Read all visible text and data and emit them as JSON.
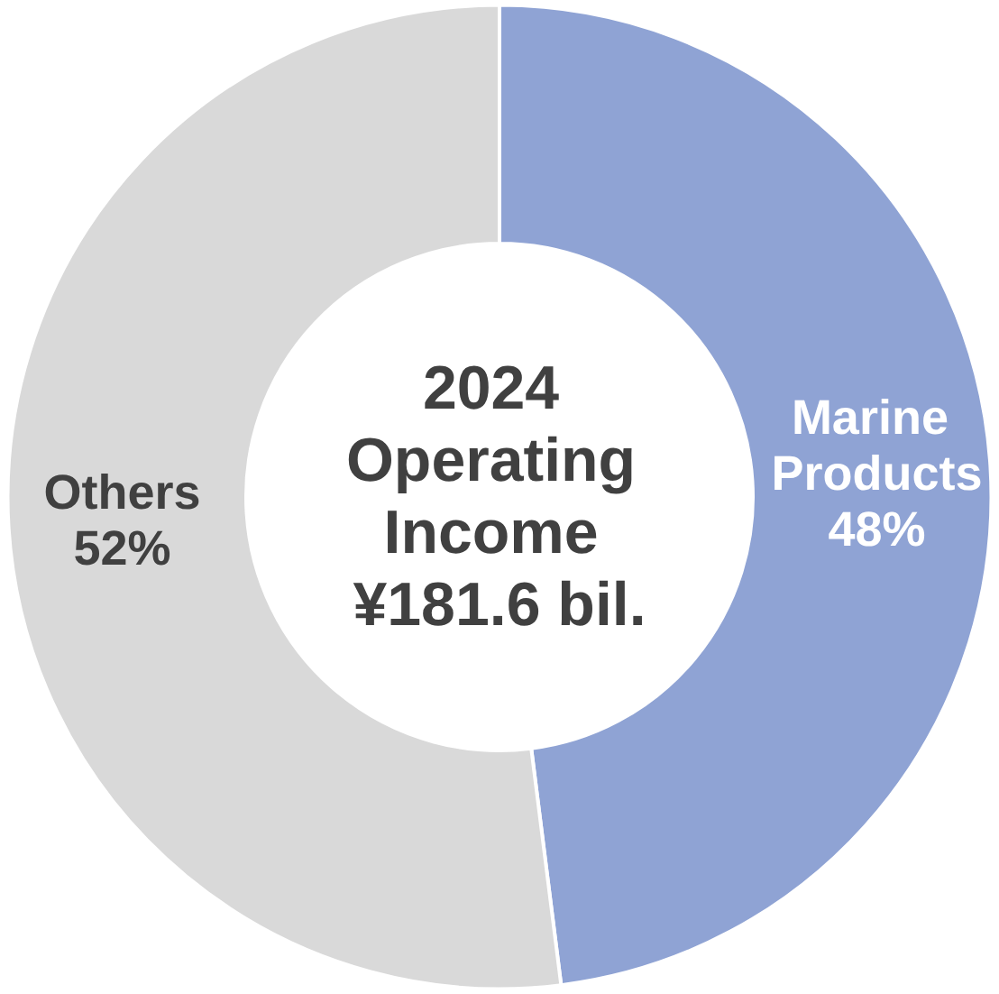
{
  "chart_data": {
    "type": "donut",
    "title": "2024 Operating Income ¥181.6 bil.",
    "categories": [
      "Marine Products",
      "Others"
    ],
    "values": [
      48,
      52
    ],
    "colors": [
      "#8fa3d4",
      "#d9d9d9"
    ],
    "value_labels": [
      "48%",
      "52%"
    ],
    "legend": false
  }
}
